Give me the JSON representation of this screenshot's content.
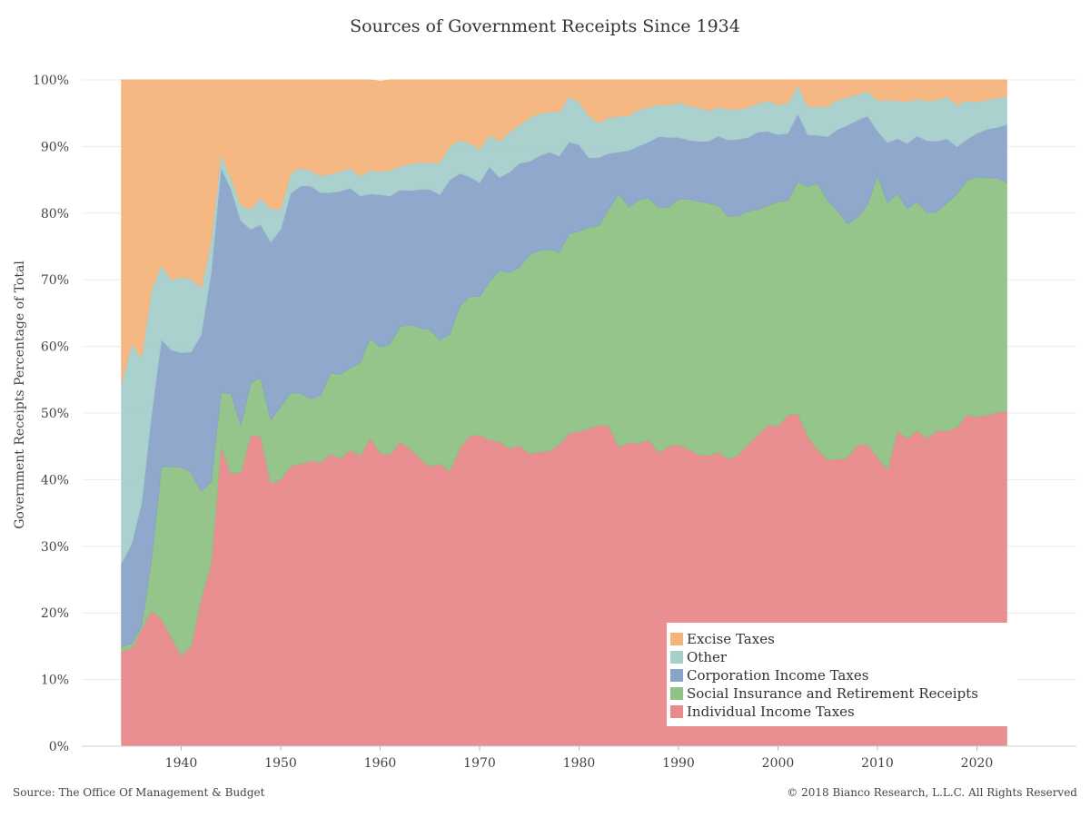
{
  "title": "Sources of Government Receipts Since 1934",
  "source_note": "Source: The Office Of Management & Budget",
  "copyright_note": "© 2018 Bianco Research, L.L.C. All Rights Reserved",
  "chart_data": {
    "type": "area",
    "stacked": true,
    "title": "Sources of Government Receipts Since 1934",
    "xlabel": "",
    "ylabel": "Government Receipts Percentage of Total",
    "xlim": [
      1930,
      2030
    ],
    "ylim": [
      0,
      100
    ],
    "x_ticks": [
      1940,
      1950,
      1960,
      1970,
      1980,
      1990,
      2000,
      2010,
      2020
    ],
    "y_ticks": [
      0,
      10,
      20,
      30,
      40,
      50,
      60,
      70,
      80,
      90,
      100
    ],
    "y_tick_labels": [
      "0%",
      "10%",
      "20%",
      "30%",
      "40%",
      "50%",
      "60%",
      "70%",
      "80%",
      "90%",
      "100%"
    ],
    "grid": "horizontal",
    "legend_position": "bottom-right",
    "legend_order": [
      "Excise Taxes",
      "Other",
      "Corporation Income Taxes",
      "Social Insurance and Retirement Receipts",
      "Individual Income Taxes"
    ],
    "x": [
      1934,
      1935,
      1936,
      1937,
      1938,
      1939,
      1940,
      1941,
      1942,
      1943,
      1944,
      1945,
      1946,
      1947,
      1948,
      1949,
      1950,
      1951,
      1952,
      1953,
      1954,
      1955,
      1956,
      1957,
      1958,
      1959,
      1960,
      1961,
      1962,
      1963,
      1964,
      1965,
      1966,
      1967,
      1968,
      1969,
      1970,
      1971,
      1972,
      1973,
      1974,
      1975,
      1976,
      1977,
      1978,
      1979,
      1980,
      1981,
      1982,
      1983,
      1984,
      1985,
      1986,
      1987,
      1988,
      1989,
      1990,
      1991,
      1992,
      1993,
      1994,
      1995,
      1996,
      1997,
      1998,
      1999,
      2000,
      2001,
      2002,
      2003,
      2004,
      2005,
      2006,
      2007,
      2008,
      2009,
      2010,
      2011,
      2012,
      2013,
      2014,
      2015,
      2016,
      2017,
      2018,
      2019,
      2020,
      2021,
      2022,
      2023
    ],
    "series": [
      {
        "name": "Individual Income Taxes",
        "color": "#e8898b",
        "values": [
          14.2,
          14.7,
          17.5,
          20.4,
          19.1,
          16.4,
          13.6,
          15.1,
          22.3,
          27.3,
          45.1,
          40.9,
          41.1,
          46.7,
          46.5,
          39.5,
          40.0,
          42.0,
          42.4,
          42.8,
          42.6,
          43.9,
          43.2,
          44.5,
          43.6,
          46.3,
          44.0,
          43.8,
          45.7,
          44.7,
          43.2,
          42.0,
          42.4,
          41.3,
          44.7,
          46.6,
          46.7,
          46.0,
          45.7,
          44.7,
          45.2,
          43.9,
          44.2,
          44.3,
          45.3,
          47.0,
          47.2,
          47.7,
          48.2,
          48.1,
          44.9,
          45.6,
          45.4,
          46.0,
          44.1,
          45.0,
          45.3,
          44.6,
          43.8,
          43.6,
          44.2,
          43.1,
          43.7,
          45.4,
          46.8,
          48.2,
          48.1,
          49.7,
          49.9,
          46.5,
          44.5,
          43.0,
          43.1,
          43.3,
          45.3,
          45.3,
          43.4,
          41.5,
          47.4,
          46.2,
          47.4,
          46.2,
          47.4,
          47.3,
          47.9,
          49.8,
          49.4,
          49.7,
          50.1,
          50.3
        ]
      },
      {
        "name": "Social Insurance and Retirement Receipts",
        "color": "#8fc284",
        "values": [
          0.7,
          0.7,
          0.5,
          7.5,
          22.8,
          25.6,
          28.3,
          26.0,
          16.0,
          12.3,
          8.0,
          12.0,
          7.0,
          7.9,
          8.8,
          9.5,
          11.0,
          11.0,
          10.6,
          9.4,
          10.1,
          12.1,
          12.6,
          12.3,
          14.0,
          15.0,
          15.9,
          16.6,
          17.3,
          18.6,
          19.6,
          20.5,
          18.6,
          20.5,
          21.3,
          20.9,
          20.8,
          23.8,
          25.7,
          26.4,
          26.7,
          29.8,
          30.2,
          30.3,
          28.8,
          29.9,
          30.1,
          30.2,
          30.0,
          32.6,
          38.1,
          35.3,
          36.6,
          36.3,
          36.8,
          35.9,
          36.8,
          37.5,
          38.0,
          37.9,
          37.0,
          36.4,
          35.9,
          34.9,
          33.8,
          33.0,
          33.6,
          32.2,
          34.9,
          37.5,
          40.0,
          38.9,
          37.3,
          35.1,
          34.1,
          36.0,
          42.4,
          40.1,
          35.6,
          34.5,
          34.3,
          33.9,
          32.8,
          34.3,
          35.0,
          35.1,
          36.1,
          35.6,
          35.2,
          34.3
        ]
      },
      {
        "name": "Corporation Income Taxes",
        "color": "#8aa3c9",
        "values": [
          12.6,
          15.0,
          18.5,
          21.9,
          19.2,
          17.5,
          17.2,
          18.1,
          23.5,
          31.5,
          33.8,
          30.8,
          30.8,
          23.0,
          23.0,
          26.7,
          26.6,
          30.0,
          31.1,
          31.9,
          30.4,
          27.1,
          27.5,
          27.0,
          25.0,
          21.6,
          22.9,
          22.2,
          20.5,
          20.1,
          20.8,
          21.1,
          21.8,
          23.2,
          20.0,
          18.0,
          17.1,
          17.2,
          14.0,
          15.1,
          15.6,
          14.1,
          14.2,
          14.6,
          14.5,
          13.8,
          13.0,
          10.4,
          10.2,
          8.3,
          6.2,
          8.5,
          8.1,
          8.4,
          10.6,
          10.5,
          9.3,
          8.9,
          9.0,
          9.3,
          10.4,
          11.5,
          11.5,
          11.1,
          11.6,
          11.1,
          10.1,
          10.1,
          10.2,
          7.8,
          7.2,
          9.6,
          12.2,
          14.8,
          14.6,
          13.3,
          6.6,
          9.0,
          8.2,
          9.8,
          9.9,
          10.8,
          10.6,
          9.6,
          7.1,
          6.2,
          6.5,
          7.3,
          7.6,
          8.7
        ]
      },
      {
        "name": "Other",
        "color": "#a6cfcc",
        "values": [
          27.0,
          30.0,
          21.9,
          18.7,
          11.2,
          10.5,
          11.3,
          11.0,
          7.0,
          4.8,
          2.1,
          1.6,
          2.4,
          3.0,
          4.0,
          5.0,
          3.0,
          3.0,
          2.7,
          2.3,
          2.5,
          2.8,
          3.0,
          3.0,
          3.0,
          3.5,
          3.5,
          3.8,
          3.6,
          4.0,
          4.0,
          4.0,
          4.8,
          5.0,
          5.0,
          5.0,
          5.0,
          4.8,
          5.4,
          6.0,
          5.8,
          6.5,
          6.4,
          6.0,
          6.6,
          6.8,
          6.4,
          6.3,
          5.2,
          5.4,
          5.3,
          5.3,
          5.5,
          5.2,
          4.8,
          4.9,
          5.2,
          5.2,
          5.1,
          4.6,
          4.4,
          4.6,
          4.5,
          4.5,
          4.3,
          4.6,
          4.5,
          4.5,
          4.3,
          4.2,
          4.3,
          4.6,
          4.4,
          4.2,
          3.8,
          3.8,
          4.5,
          6.4,
          5.7,
          6.3,
          5.5,
          6.0,
          6.2,
          6.3,
          6.3,
          5.8,
          4.7,
          4.4,
          4.4,
          4.2
        ]
      },
      {
        "name": "Excise Taxes",
        "color": "#f4b47c",
        "values": [
          45.5,
          39.6,
          41.6,
          31.5,
          27.7,
          30.0,
          29.6,
          29.8,
          31.2,
          24.1,
          11.0,
          14.7,
          18.7,
          19.4,
          17.7,
          19.3,
          19.4,
          14.0,
          13.2,
          13.6,
          14.4,
          14.1,
          13.7,
          13.2,
          14.4,
          13.6,
          13.5,
          13.6,
          12.9,
          12.6,
          12.4,
          12.4,
          12.4,
          10.0,
          9.0,
          9.5,
          10.4,
          8.2,
          9.2,
          7.8,
          6.7,
          5.7,
          5.0,
          4.8,
          4.8,
          2.5,
          3.3,
          5.4,
          6.4,
          5.6,
          5.5,
          5.3,
          4.4,
          4.1,
          3.7,
          3.7,
          3.4,
          3.8,
          4.1,
          4.6,
          4.0,
          4.4,
          4.4,
          4.1,
          3.5,
          3.1,
          3.7,
          3.5,
          0.7,
          4.0,
          4.0,
          3.9,
          3.0,
          2.6,
          2.2,
          1.6,
          3.1,
          3.0,
          3.1,
          3.2,
          2.9,
          3.1,
          3.0,
          2.5,
          3.7,
          3.1,
          3.3,
          3.0,
          2.7,
          2.5
        ]
      }
    ]
  }
}
